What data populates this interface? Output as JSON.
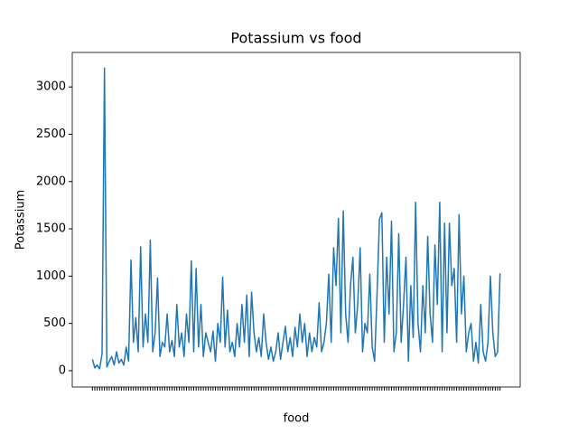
{
  "chart_data": {
    "type": "line",
    "title": "Potassium vs food",
    "xlabel": "food",
    "ylabel": "Potassium",
    "categories": [
      null,
      null,
      null,
      null,
      null,
      null,
      null,
      null,
      null,
      null,
      null,
      null,
      null,
      null,
      null,
      null,
      null,
      null,
      null,
      null,
      null,
      null,
      null,
      null,
      null,
      null,
      null,
      null,
      null,
      null,
      null,
      null,
      null,
      null,
      null,
      null,
      null,
      null,
      null,
      null,
      null,
      null,
      null,
      null,
      null,
      null,
      null,
      null,
      null,
      null,
      null,
      null,
      null,
      null,
      null,
      null,
      null,
      null,
      null,
      null,
      null,
      null,
      null,
      null,
      null,
      null,
      null,
      null,
      null,
      null,
      null,
      null,
      null,
      null,
      null,
      null,
      null,
      null,
      null,
      null,
      null,
      null,
      null,
      null,
      null,
      null,
      null,
      null,
      null,
      null,
      null,
      null,
      null,
      null,
      null,
      null,
      null,
      null,
      null,
      null,
      null,
      null,
      null,
      null,
      null,
      null,
      null,
      null,
      null,
      null,
      null,
      null,
      null,
      null,
      null,
      null,
      null,
      null,
      null,
      null,
      null,
      null,
      null,
      null,
      null,
      null,
      null,
      null,
      null,
      null,
      null,
      null,
      null,
      null,
      null,
      null,
      null,
      null,
      null,
      null,
      null,
      null,
      null,
      null,
      null,
      null,
      null,
      null,
      null,
      null,
      null,
      null,
      null,
      null,
      null,
      null,
      null,
      null,
      null,
      null,
      null,
      null,
      null,
      null,
      null,
      null,
      null,
      null,
      null,
      null
    ],
    "values": [
      120,
      30,
      60,
      20,
      180,
      3200,
      40,
      100,
      150,
      60,
      200,
      80,
      120,
      60,
      250,
      100,
      1170,
      300,
      560,
      200,
      1310,
      250,
      600,
      300,
      1380,
      200,
      400,
      980,
      150,
      300,
      250,
      600,
      200,
      320,
      150,
      700,
      250,
      400,
      150,
      600,
      300,
      1160,
      200,
      1080,
      250,
      700,
      150,
      400,
      300,
      200,
      420,
      100,
      500,
      300,
      990,
      250,
      640,
      200,
      300,
      150,
      500,
      250,
      700,
      300,
      800,
      150,
      830,
      400,
      200,
      350,
      150,
      600,
      300,
      120,
      250,
      100,
      200,
      400,
      120,
      300,
      470,
      200,
      350,
      150,
      460,
      250,
      600,
      300,
      500,
      150,
      400,
      200,
      350,
      250,
      720,
      200,
      300,
      500,
      1020,
      300,
      1300,
      900,
      1610,
      400,
      1690,
      600,
      300,
      900,
      1200,
      400,
      700,
      1300,
      200,
      500,
      400,
      1020,
      250,
      100,
      800,
      1600,
      1670,
      300,
      1200,
      600,
      1580,
      200,
      400,
      1450,
      300,
      700,
      1200,
      100,
      900,
      350,
      1780,
      500,
      200,
      900,
      400,
      1420,
      600,
      300,
      1330,
      700,
      1780,
      200,
      1560,
      400,
      1560,
      900,
      1080,
      300,
      1650,
      600,
      1000,
      200,
      400,
      500,
      100,
      300,
      80,
      700,
      200,
      100,
      300,
      1000,
      400,
      150,
      200,
      1030
    ],
    "color": "#1f77b4",
    "ylim": [
      -172,
      3365
    ],
    "yticks": [
      0,
      500,
      1000,
      1500,
      2000,
      2500,
      3000
    ]
  }
}
